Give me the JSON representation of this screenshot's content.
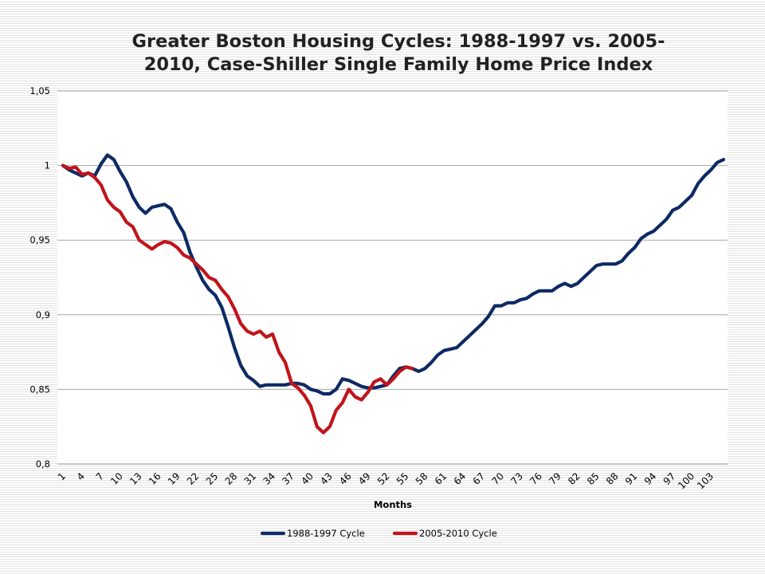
{
  "chart_data": {
    "type": "line",
    "title_lines": [
      "Greater Boston Housing Cycles: 1988-1997 vs. 2005-",
      "2010, Case-Shiller Single Family Home Price Index"
    ],
    "xlabel": "Months",
    "ylabel": "",
    "ylim": [
      0.8,
      1.05
    ],
    "yticks": [
      "0,8",
      "0,85",
      "0,9",
      "0,95",
      "1",
      "1,05"
    ],
    "ytick_values": [
      0.8,
      0.85,
      0.9,
      0.95,
      1.0,
      1.05
    ],
    "x_range": [
      1,
      105
    ],
    "xtick_values": [
      1,
      4,
      7,
      10,
      13,
      16,
      19,
      22,
      25,
      28,
      31,
      34,
      37,
      40,
      43,
      46,
      49,
      52,
      55,
      58,
      61,
      64,
      67,
      70,
      73,
      76,
      79,
      82,
      85,
      88,
      91,
      94,
      97,
      100,
      103
    ],
    "grid": "horizontal",
    "legend_position": "bottom",
    "series": [
      {
        "name": "1988-1997 Cycle",
        "color": "#0d2a63",
        "x": [
          1,
          2,
          3,
          4,
          5,
          6,
          7,
          8,
          9,
          10,
          11,
          12,
          13,
          14,
          15,
          16,
          17,
          18,
          19,
          20,
          21,
          22,
          23,
          24,
          25,
          26,
          27,
          28,
          29,
          30,
          31,
          32,
          33,
          34,
          35,
          36,
          37,
          38,
          39,
          40,
          41,
          42,
          43,
          44,
          45,
          46,
          47,
          48,
          49,
          50,
          51,
          52,
          53,
          54,
          55,
          56,
          57,
          58,
          59,
          60,
          61,
          62,
          63,
          64,
          65,
          66,
          67,
          68,
          69,
          70,
          71,
          72,
          73,
          74,
          75,
          76,
          77,
          78,
          79,
          80,
          81,
          82,
          83,
          84,
          85,
          86,
          87,
          88,
          89,
          90,
          91,
          92,
          93,
          94,
          95,
          96,
          97,
          98,
          99,
          100,
          101,
          102,
          103,
          104,
          105
        ],
        "values": [
          1.0,
          0.997,
          0.995,
          0.993,
          0.995,
          0.993,
          1.001,
          1.007,
          1.004,
          0.996,
          0.989,
          0.979,
          0.972,
          0.968,
          0.972,
          0.973,
          0.974,
          0.971,
          0.962,
          0.955,
          0.942,
          0.932,
          0.923,
          0.917,
          0.913,
          0.905,
          0.892,
          0.878,
          0.866,
          0.859,
          0.856,
          0.852,
          0.853,
          0.853,
          0.853,
          0.853,
          0.854,
          0.854,
          0.853,
          0.85,
          0.849,
          0.847,
          0.847,
          0.85,
          0.857,
          0.856,
          0.854,
          0.852,
          0.851,
          0.851,
          0.852,
          0.853,
          0.859,
          0.864,
          0.865,
          0.864,
          0.862,
          0.864,
          0.868,
          0.873,
          0.876,
          0.877,
          0.878,
          0.882,
          0.886,
          0.89,
          0.894,
          0.899,
          0.906,
          0.906,
          0.908,
          0.908,
          0.91,
          0.911,
          0.914,
          0.916,
          0.916,
          0.916,
          0.919,
          0.921,
          0.919,
          0.921,
          0.925,
          0.929,
          0.933,
          0.934,
          0.934,
          0.934,
          0.936,
          0.941,
          0.945,
          0.951,
          0.954,
          0.956,
          0.96,
          0.964,
          0.97,
          0.972,
          0.976,
          0.98,
          0.988,
          0.993,
          0.997,
          1.002,
          1.004
        ]
      },
      {
        "name": "2005-2010 Cycle",
        "color": "#c0141b",
        "x": [
          1,
          2,
          3,
          4,
          5,
          6,
          7,
          8,
          9,
          10,
          11,
          12,
          13,
          14,
          15,
          16,
          17,
          18,
          19,
          20,
          21,
          22,
          23,
          24,
          25,
          26,
          27,
          28,
          29,
          30,
          31,
          32,
          33,
          34,
          35,
          36,
          37,
          38,
          39,
          40,
          41,
          42,
          43,
          44,
          45,
          46,
          47,
          48,
          49,
          50,
          51,
          52,
          53,
          54,
          55,
          56
        ],
        "values": [
          1.0,
          0.998,
          0.999,
          0.994,
          0.995,
          0.992,
          0.987,
          0.977,
          0.972,
          0.969,
          0.962,
          0.959,
          0.95,
          0.947,
          0.944,
          0.947,
          0.949,
          0.948,
          0.945,
          0.94,
          0.938,
          0.934,
          0.93,
          0.925,
          0.923,
          0.917,
          0.912,
          0.904,
          0.894,
          0.889,
          0.887,
          0.889,
          0.885,
          0.887,
          0.875,
          0.868,
          0.854,
          0.851,
          0.846,
          0.839,
          0.825,
          0.821,
          0.825,
          0.836,
          0.841,
          0.85,
          0.845,
          0.843,
          0.848,
          0.855,
          0.857,
          0.853,
          0.857,
          0.862,
          0.865,
          0.864
        ]
      }
    ]
  }
}
